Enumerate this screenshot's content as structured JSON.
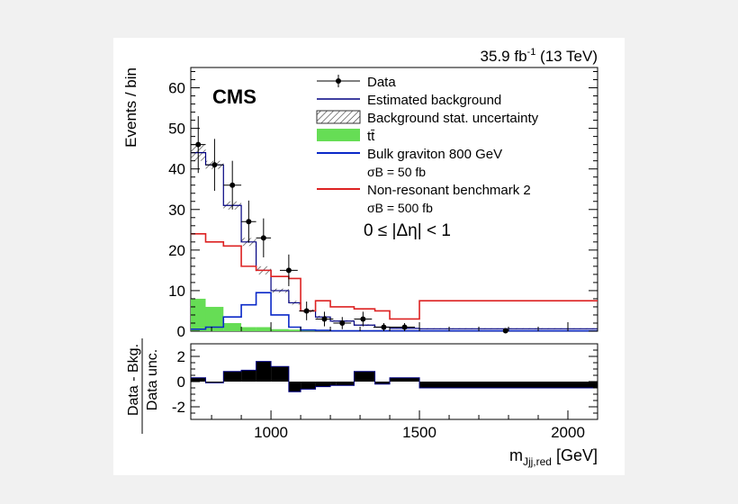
{
  "header": {
    "lumi": "35.9 fb",
    "lumi_sup": "-1",
    "energy": "(13 TeV)"
  },
  "experiment": "CMS",
  "selection": "0 ≤ |Δη| < 1",
  "chart_data": [
    {
      "type": "histogram",
      "ylabel": "Events / bin",
      "xlim": [
        730,
        2100
      ],
      "ylim": [
        0,
        65
      ],
      "yticks": [
        0,
        10,
        20,
        30,
        40,
        50,
        60
      ],
      "legend_position": "top-right",
      "bin_edges": [
        730,
        780,
        840,
        900,
        950,
        1000,
        1060,
        1100,
        1150,
        1200,
        1220,
        1280,
        1350,
        1400,
        1500,
        2100
      ],
      "series": [
        {
          "name": "Estimated background",
          "color": "#000080",
          "values": [
            44,
            41,
            31,
            22,
            15,
            10,
            7,
            5,
            3.5,
            2.5,
            2.5,
            1.5,
            1.0,
            0.7,
            0.6
          ]
        },
        {
          "name": "tt̄",
          "color": "#66dd55",
          "values": [
            8,
            6,
            2,
            1,
            1,
            0.5,
            0.4,
            0.3,
            0.2,
            0.2,
            0.2,
            0.1,
            0.1,
            0.1,
            0.1
          ]
        },
        {
          "name": "Bulk graviton 800 GeV",
          "sublabel": "σB = 50 fb",
          "color": "#0a28c8",
          "values": [
            0.5,
            1.0,
            3.5,
            6.5,
            9.5,
            4.0,
            1.0,
            0.3,
            0.2,
            0.1,
            0.1,
            0.1,
            0.1,
            0.1,
            0.1
          ]
        },
        {
          "name": "Non-resonant benchmark 2",
          "sublabel": "σB = 500 fb",
          "color": "#dd2222",
          "values": [
            24,
            22,
            21,
            16,
            15,
            13.5,
            13,
            5,
            7.5,
            6,
            6,
            5.5,
            5,
            3,
            7.5
          ]
        }
      ],
      "band": {
        "name": "Background stat. uncertainty",
        "low": [
          42,
          40,
          30,
          21,
          14,
          9.5,
          6.5,
          4.6,
          3.2,
          2.3,
          2.3,
          1.3,
          0.9,
          0.6,
          0.5
        ],
        "high": [
          46,
          42,
          32,
          23,
          16,
          10.5,
          7.5,
          5.4,
          3.8,
          2.7,
          2.7,
          1.7,
          1.1,
          0.8,
          0.7
        ]
      },
      "data": {
        "name": "Data",
        "points": [
          {
            "x": 755,
            "y": 46,
            "err": 7,
            "xerr": 25
          },
          {
            "x": 810,
            "y": 41,
            "err": 6.4,
            "xerr": 30
          },
          {
            "x": 870,
            "y": 36,
            "err": 6,
            "xerr": 30
          },
          {
            "x": 925,
            "y": 27,
            "err": 5.2,
            "xerr": 25
          },
          {
            "x": 975,
            "y": 23,
            "err": 4.8,
            "xerr": 25
          },
          {
            "x": 1060,
            "y": 15,
            "err": 3.9,
            "xerr": 30
          },
          {
            "x": 1120,
            "y": 5,
            "err": 2.3,
            "xerr": 25
          },
          {
            "x": 1180,
            "y": 3,
            "err": 1.8,
            "xerr": 30
          },
          {
            "x": 1240,
            "y": 2,
            "err": 1.5,
            "xerr": 30
          },
          {
            "x": 1310,
            "y": 3,
            "err": 1.8,
            "xerr": 30
          },
          {
            "x": 1380,
            "y": 1,
            "err": 1.0,
            "xerr": 35
          },
          {
            "x": 1450,
            "y": 1,
            "err": 1.0,
            "xerr": 35
          },
          {
            "x": 1790,
            "y": 0.1,
            "err": 0,
            "xerr": 0
          }
        ]
      }
    },
    {
      "type": "histogram",
      "ylabel_numerator": "Data - Bkg.",
      "ylabel_denominator": "Data unc.",
      "xlabel": "m",
      "xlabel_sub": "Jjj,red",
      "xlabel_unit": "[GeV]",
      "xticks": [
        1000,
        1500,
        2000
      ],
      "ylim": [
        -3,
        3
      ],
      "yticks": [
        -2,
        0,
        2
      ],
      "bin_edges": [
        730,
        780,
        840,
        900,
        950,
        1000,
        1060,
        1100,
        1150,
        1200,
        1220,
        1280,
        1350,
        1400,
        1500,
        2100
      ],
      "values": [
        0.3,
        -0.1,
        0.8,
        0.9,
        1.6,
        1.2,
        -0.8,
        -0.6,
        -0.4,
        -0.3,
        -0.3,
        0.8,
        -0.2,
        0.3,
        -0.5
      ]
    }
  ]
}
